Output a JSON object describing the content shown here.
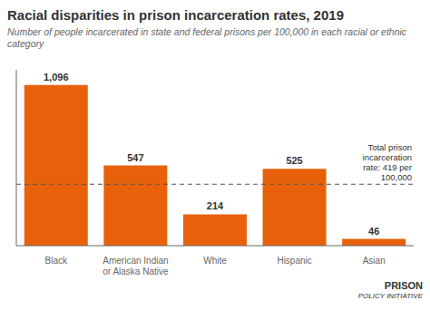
{
  "chart_data": {
    "type": "bar",
    "title": "Racial disparities in prison incarceration rates, 2019",
    "subtitle": "Number of people incarcerated in state and federal prisons per 100,000 in each racial or ethnic category",
    "categories": [
      "Black",
      "American Indian\nor Alaska Native",
      "White",
      "Hispanic",
      "Asian"
    ],
    "values": [
      1096,
      547,
      214,
      525,
      46
    ],
    "value_labels": [
      "1,096",
      "547",
      "214",
      "525",
      "46"
    ],
    "data_labels": true,
    "color": "#E8610A",
    "ylim": [
      0,
      1200
    ],
    "tick_labels": "x",
    "grid": false,
    "reference_line": {
      "y": 419,
      "label": "Total prison\nincarceration\nrate: 419 per\n100,000",
      "line_style": "dashed"
    },
    "annotations": [
      "PRISON",
      "POLICY INITIATIVE"
    ]
  }
}
